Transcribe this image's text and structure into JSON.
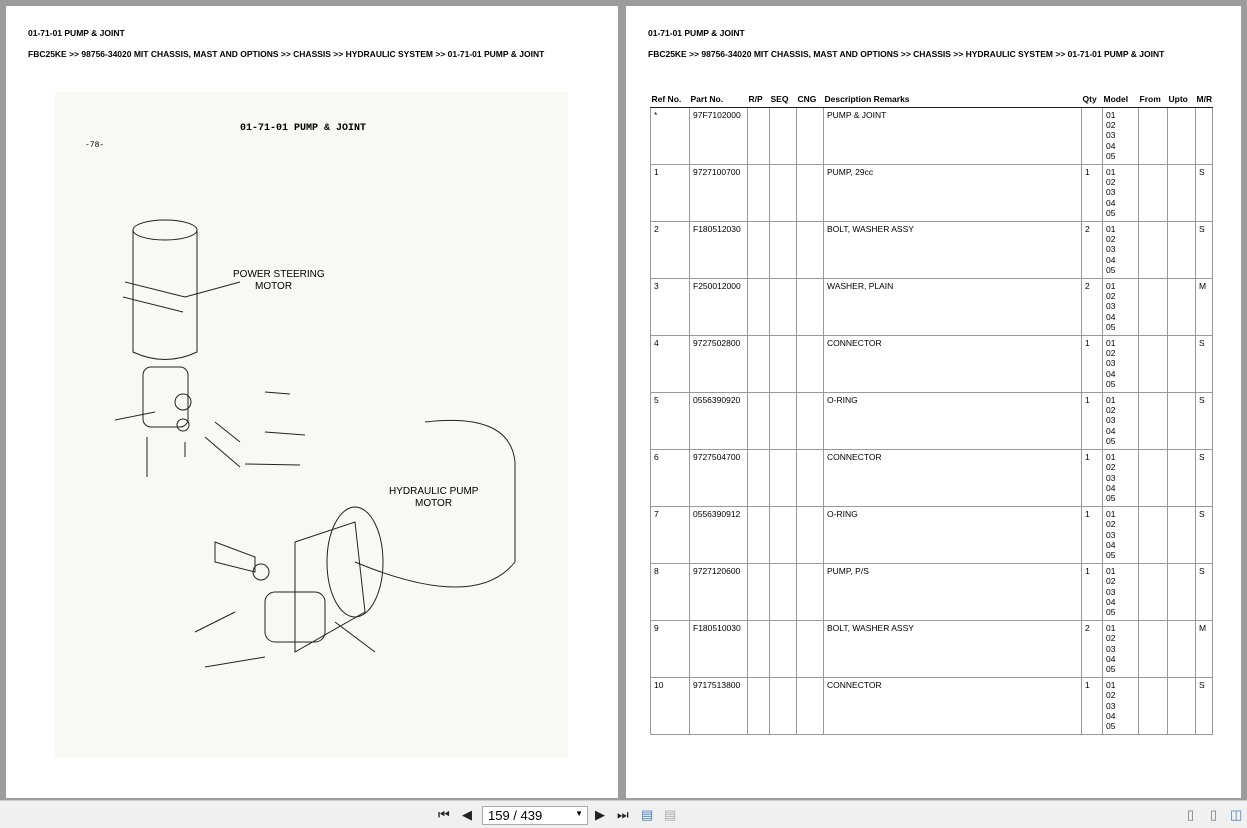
{
  "title": "01-71-01 PUMP & JOINT",
  "breadcrumb": "FBC25KE >> 98756-34020 MIT CHASSIS, MAST AND OPTIONS >> CHASSIS >> HYDRAULIC SYSTEM >> 01-71-01 PUMP & JOINT",
  "diagram": {
    "title": "01-71-01 PUMP & JOINT",
    "page_ref": "-78-",
    "label_ps": "POWER STEERING",
    "label_ps2": "MOTOR",
    "label_hp": "HYDRAULIC PUMP",
    "label_hp2": "MOTOR"
  },
  "table": {
    "headers": [
      "Ref No.",
      "Part No.",
      "R/P",
      "SEQ",
      "CNG",
      "Description Remarks",
      "Qty",
      "Model",
      "From",
      "Upto",
      "M/R"
    ],
    "rows": [
      {
        "ref": "*",
        "part": "97F7102000",
        "desc": "PUMP & JOINT",
        "qty": "",
        "models": "01\n02\n03\n04\n05",
        "mr": ""
      },
      {
        "ref": "1",
        "part": "9727100700",
        "desc": "PUMP, 29cc",
        "qty": "1",
        "models": "01\n02\n03\n04\n05",
        "mr": "S"
      },
      {
        "ref": "2",
        "part": "F180512030",
        "desc": "BOLT, WASHER ASSY",
        "qty": "2",
        "models": "01\n02\n03\n04\n05",
        "mr": "S"
      },
      {
        "ref": "3",
        "part": "F250012000",
        "desc": "WASHER, PLAIN",
        "qty": "2",
        "models": "01\n02\n03\n04\n05",
        "mr": "M"
      },
      {
        "ref": "4",
        "part": "9727502800",
        "desc": "CONNECTOR",
        "qty": "1",
        "models": "01\n02\n03\n04\n05",
        "mr": "S"
      },
      {
        "ref": "5",
        "part": "0556390920",
        "desc": "O-RING",
        "qty": "1",
        "models": "01\n02\n03\n04\n05",
        "mr": "S"
      },
      {
        "ref": "6",
        "part": "9727504700",
        "desc": "CONNECTOR",
        "qty": "1",
        "models": "01\n02\n03\n04\n05",
        "mr": "S"
      },
      {
        "ref": "7",
        "part": "0556390912",
        "desc": "O-RING",
        "qty": "1",
        "models": "01\n02\n03\n04\n05",
        "mr": "S"
      },
      {
        "ref": "8",
        "part": "9727120600",
        "desc": "PUMP, P/S",
        "qty": "1",
        "models": "01\n02\n03\n04\n05",
        "mr": "S"
      },
      {
        "ref": "9",
        "part": "F180510030",
        "desc": "BOLT, WASHER ASSY",
        "qty": "2",
        "models": "01\n02\n03\n04\n05",
        "mr": "M"
      },
      {
        "ref": "10",
        "part": "9717513800",
        "desc": "CONNECTOR",
        "qty": "1",
        "models": "01\n02\n03\n04\n05",
        "mr": "S"
      }
    ]
  },
  "toolbar": {
    "page_value": "159 / 439",
    "current_page": 159,
    "total_pages": 439
  }
}
